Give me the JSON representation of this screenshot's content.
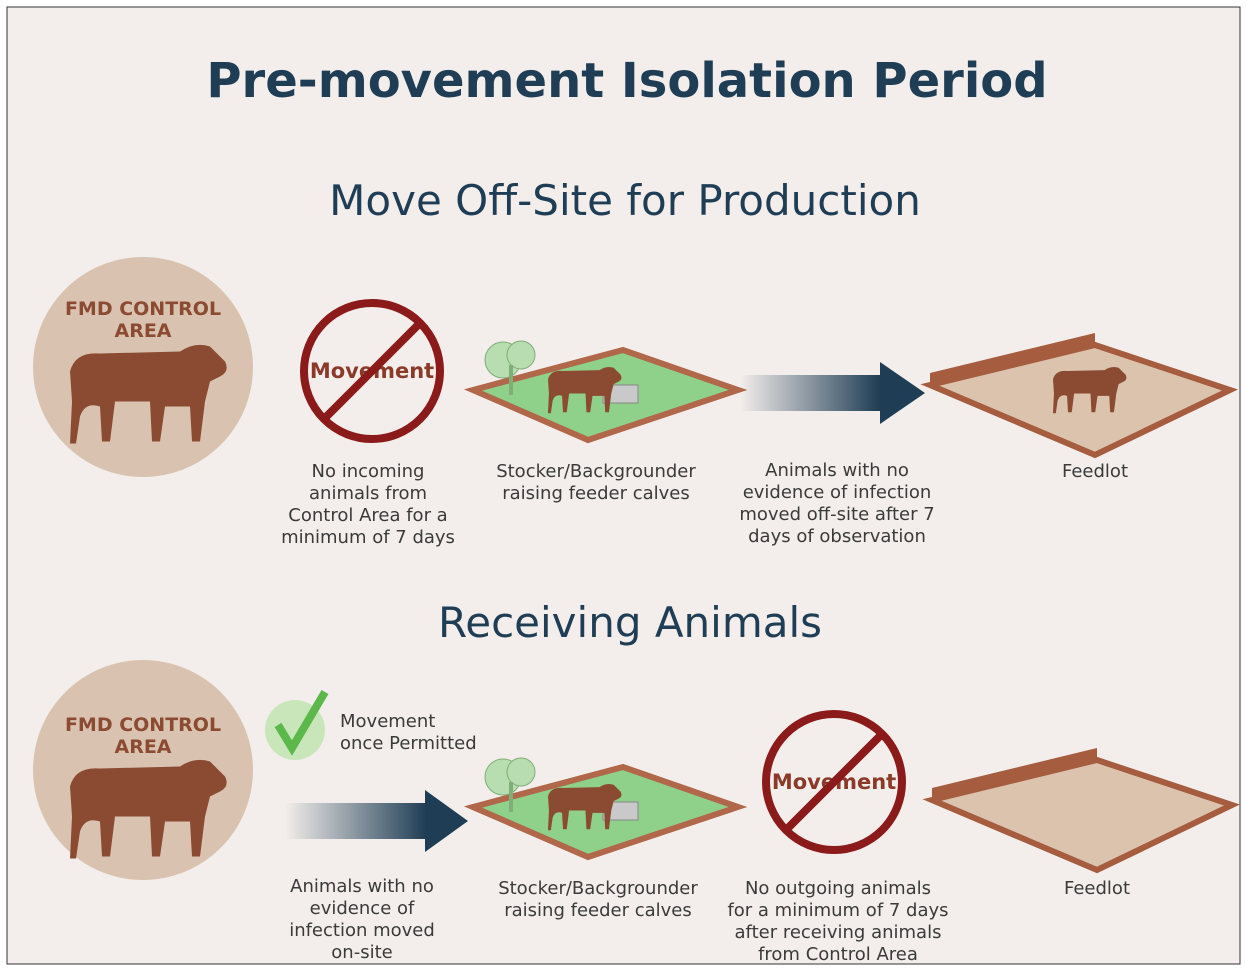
{
  "title": "Pre-movement Isolation Period",
  "sections": [
    {
      "heading": "Move Off-Site for Production",
      "control_area": [
        "FMD CONTROL",
        "AREA"
      ],
      "sign": "Movement",
      "captions": [
        [
          "No incoming",
          "animals from",
          "Control Area for a",
          "minimum of 7 days"
        ],
        [
          "Stocker/Backgrounder",
          "raising feeder calves"
        ],
        [
          "Animals with no",
          "evidence of infection",
          "moved off-site after 7",
          "days of observation"
        ],
        [
          "Feedlot"
        ]
      ]
    },
    {
      "heading": "Receiving Animals",
      "control_area": [
        "FMD CONTROL",
        "AREA"
      ],
      "permit": [
        "Movement",
        "once Permitted"
      ],
      "sign": "Movement",
      "captions": [
        [
          "Animals with no",
          "evidence of",
          "infection moved",
          "on-site"
        ],
        [
          "Stocker/Backgrounder",
          "raising feeder calves"
        ],
        [
          "No outgoing animals",
          "for a minimum of 7 days",
          "after receiving animals",
          "from Control Area"
        ],
        [
          "Feedlot"
        ]
      ]
    }
  ]
}
